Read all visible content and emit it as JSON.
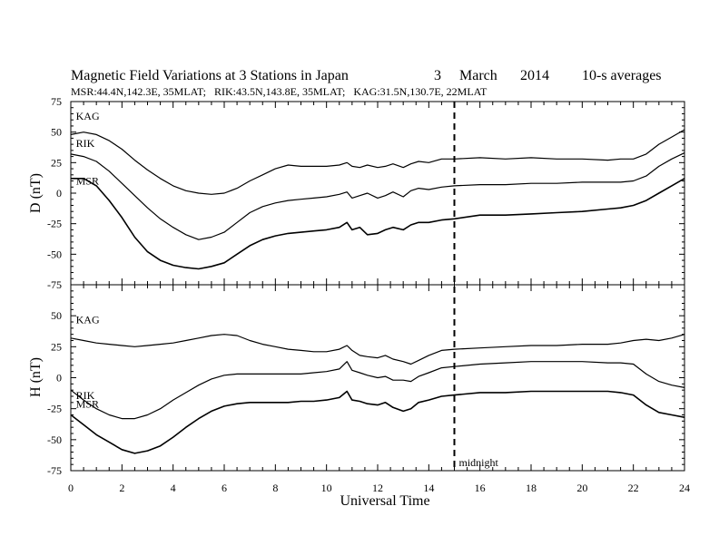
{
  "header": {
    "title": "Magnetic Field Variations at 3 Stations in Japan",
    "date_day": "3",
    "date_month": "March",
    "date_year": "2014",
    "averaging": "10-s averages",
    "stations_info": "MSR:44.4N,142.3E, 35MLAT;   RIK:43.5N,143.8E, 35MLAT;   KAG:31.5N,130.7E, 22MLAT"
  },
  "chart_data": {
    "type": "line",
    "x_label": "Universal Time",
    "x_range": [
      0,
      24
    ],
    "x_ticks": [
      0,
      2,
      4,
      6,
      8,
      10,
      12,
      14,
      16,
      18,
      20,
      22,
      24
    ],
    "grid": false,
    "annotation": {
      "label": "midnight",
      "x": 15,
      "style": "dashed-vertical-line"
    },
    "panels": [
      {
        "id": "D",
        "ylabel": "D (nT)",
        "y_range": [
          -75,
          75
        ],
        "y_ticks": [
          75,
          50,
          25,
          0,
          -25,
          -50,
          -75
        ],
        "series": [
          {
            "name": "KAG",
            "x": [
              0,
              0.5,
              1,
              1.5,
              2,
              2.5,
              3,
              3.5,
              4,
              4.5,
              5,
              5.5,
              6,
              6.5,
              7,
              7.5,
              8,
              8.5,
              9,
              9.5,
              10,
              10.5,
              10.8,
              11,
              11.3,
              11.6,
              12,
              12.3,
              12.6,
              13,
              13.3,
              13.6,
              14,
              14.5,
              15,
              16,
              17,
              18,
              19,
              20,
              21,
              21.5,
              22,
              22.5,
              23,
              23.5,
              24
            ],
            "y": [
              48,
              50,
              48,
              43,
              36,
              27,
              19,
              12,
              6,
              2,
              0,
              -1,
              0,
              4,
              10,
              15,
              20,
              23,
              22,
              22,
              22,
              23,
              25,
              22,
              21,
              23,
              21,
              22,
              24,
              21,
              24,
              26,
              25,
              28,
              28,
              29,
              28,
              29,
              28,
              28,
              27,
              28,
              28,
              32,
              40,
              46,
              52
            ]
          },
          {
            "name": "RIK",
            "x": [
              0,
              0.5,
              1,
              1.5,
              2,
              2.5,
              3,
              3.5,
              4,
              4.5,
              5,
              5.5,
              6,
              6.5,
              7,
              7.5,
              8,
              8.5,
              9,
              9.5,
              10,
              10.5,
              10.8,
              11,
              11.3,
              11.6,
              12,
              12.3,
              12.6,
              13,
              13.3,
              13.6,
              14,
              14.5,
              15,
              16,
              17,
              18,
              19,
              20,
              21,
              21.5,
              22,
              22.5,
              23,
              23.5,
              24
            ],
            "y": [
              32,
              30,
              26,
              18,
              8,
              -2,
              -12,
              -21,
              -28,
              -34,
              -38,
              -36,
              -32,
              -24,
              -16,
              -11,
              -8,
              -6,
              -5,
              -4,
              -3,
              -1,
              1,
              -4,
              -2,
              0,
              -4,
              -2,
              1,
              -3,
              2,
              4,
              3,
              5,
              6,
              7,
              7,
              8,
              8,
              9,
              9,
              9,
              10,
              14,
              22,
              28,
              33
            ]
          },
          {
            "name": "MSR",
            "x": [
              0,
              0.5,
              1,
              1.5,
              2,
              2.5,
              3,
              3.5,
              4,
              4.5,
              5,
              5.5,
              6,
              6.5,
              7,
              7.5,
              8,
              8.5,
              9,
              9.5,
              10,
              10.5,
              10.8,
              11,
              11.3,
              11.6,
              12,
              12.3,
              12.6,
              13,
              13.3,
              13.6,
              14,
              14.5,
              15,
              16,
              17,
              18,
              19,
              20,
              21,
              21.5,
              22,
              22.5,
              23,
              23.5,
              24
            ],
            "y": [
              12,
              12,
              6,
              -6,
              -20,
              -36,
              -48,
              -55,
              -59,
              -61,
              -62,
              -60,
              -57,
              -50,
              -43,
              -38,
              -35,
              -33,
              -32,
              -31,
              -30,
              -28,
              -24,
              -30,
              -28,
              -34,
              -33,
              -30,
              -28,
              -30,
              -26,
              -24,
              -24,
              -22,
              -21,
              -18,
              -18,
              -17,
              -16,
              -15,
              -13,
              -12,
              -10,
              -6,
              0,
              6,
              12
            ]
          }
        ]
      },
      {
        "id": "H",
        "ylabel": "H (nT)",
        "y_range": [
          -75,
          75
        ],
        "y_ticks": [
          75,
          50,
          25,
          0,
          -25,
          -50,
          -75
        ],
        "series": [
          {
            "name": "KAG",
            "x": [
              0,
              0.5,
              1,
              1.5,
              2,
              2.5,
              3,
              3.5,
              4,
              4.5,
              5,
              5.5,
              6,
              6.5,
              7,
              7.5,
              8,
              8.5,
              9,
              9.5,
              10,
              10.5,
              10.8,
              11,
              11.3,
              11.6,
              12,
              12.3,
              12.6,
              13,
              13.3,
              13.6,
              14,
              14.5,
              15,
              16,
              17,
              18,
              19,
              20,
              21,
              21.5,
              22,
              22.5,
              23,
              23.5,
              24
            ],
            "y": [
              32,
              30,
              28,
              27,
              26,
              25,
              26,
              27,
              28,
              30,
              32,
              34,
              35,
              34,
              30,
              27,
              25,
              23,
              22,
              21,
              21,
              23,
              26,
              22,
              18,
              17,
              16,
              18,
              15,
              13,
              11,
              14,
              18,
              22,
              23,
              24,
              25,
              26,
              26,
              27,
              27,
              28,
              30,
              31,
              30,
              32,
              35
            ]
          },
          {
            "name": "RIK",
            "x": [
              0,
              0.5,
              1,
              1.5,
              2,
              2.5,
              3,
              3.5,
              4,
              4.5,
              5,
              5.5,
              6,
              6.5,
              7,
              7.5,
              8,
              8.5,
              9,
              9.5,
              10,
              10.5,
              10.8,
              11,
              11.3,
              11.6,
              12,
              12.3,
              12.6,
              13,
              13.3,
              13.6,
              14,
              14.5,
              15,
              16,
              17,
              18,
              19,
              20,
              21,
              21.5,
              22,
              22.5,
              23,
              23.5,
              24
            ],
            "y": [
              -10,
              -18,
              -25,
              -30,
              -33,
              -33,
              -30,
              -25,
              -18,
              -12,
              -6,
              -1,
              2,
              3,
              3,
              3,
              3,
              3,
              3,
              4,
              5,
              7,
              13,
              6,
              4,
              2,
              0,
              1,
              -2,
              -2,
              -3,
              1,
              4,
              8,
              9,
              11,
              12,
              13,
              13,
              13,
              12,
              12,
              11,
              3,
              -3,
              -6,
              -8
            ]
          },
          {
            "name": "MSR",
            "x": [
              0,
              0.5,
              1,
              1.5,
              2,
              2.5,
              3,
              3.5,
              4,
              4.5,
              5,
              5.5,
              6,
              6.5,
              7,
              7.5,
              8,
              8.5,
              9,
              9.5,
              10,
              10.5,
              10.8,
              11,
              11.3,
              11.6,
              12,
              12.3,
              12.6,
              13,
              13.3,
              13.6,
              14,
              14.5,
              15,
              16,
              17,
              18,
              19,
              20,
              21,
              21.5,
              22,
              22.5,
              23,
              23.5,
              24
            ],
            "y": [
              -30,
              -38,
              -46,
              -52,
              -58,
              -61,
              -59,
              -55,
              -48,
              -40,
              -33,
              -27,
              -23,
              -21,
              -20,
              -20,
              -20,
              -20,
              -19,
              -19,
              -18,
              -16,
              -11,
              -18,
              -19,
              -21,
              -22,
              -20,
              -24,
              -27,
              -25,
              -20,
              -18,
              -15,
              -14,
              -12,
              -12,
              -11,
              -11,
              -11,
              -11,
              -12,
              -14,
              -22,
              -28,
              -30,
              -32
            ]
          }
        ]
      }
    ]
  }
}
